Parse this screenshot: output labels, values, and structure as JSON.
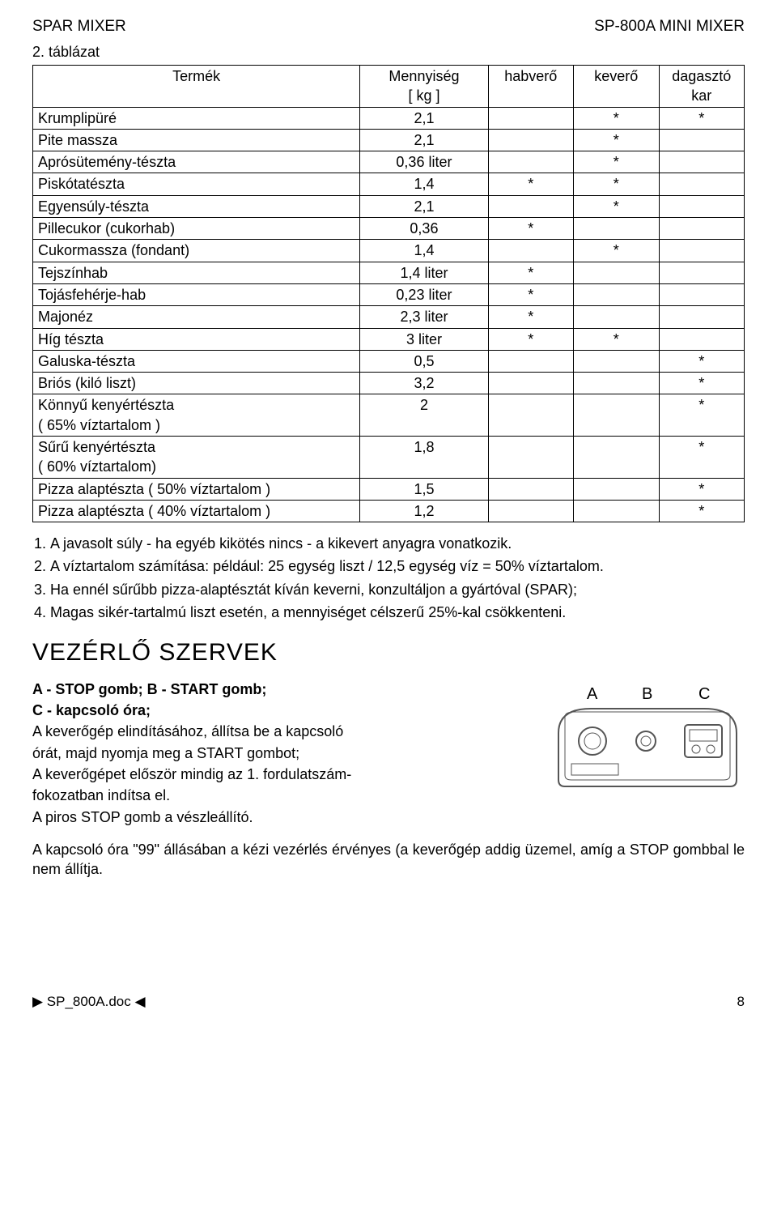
{
  "header": {
    "left": "SPAR MIXER",
    "right": "SP-800A MINI MIXER"
  },
  "table": {
    "caption": "2. táblázat",
    "head": {
      "name": "Termék",
      "qty_l1": "Mennyiség",
      "qty_l2": "[ kg ]",
      "c1": "habverő",
      "c2": "keverő",
      "c3_l1": "dagasztó",
      "c3_l2": "kar"
    },
    "rows": [
      {
        "name": "Krumplipüré",
        "qty": "2,1",
        "a": "",
        "b": "*",
        "c": "*"
      },
      {
        "name": "Pite massza",
        "qty": "2,1",
        "a": "",
        "b": "*",
        "c": ""
      },
      {
        "name": "Aprósütemény-tészta",
        "qty": "0,36 liter",
        "a": "",
        "b": "*",
        "c": ""
      },
      {
        "name": "Piskótatészta",
        "qty": "1,4",
        "a": "*",
        "b": "*",
        "c": ""
      },
      {
        "name": "Egyensúly-tészta",
        "qty": "2,1",
        "a": "",
        "b": "*",
        "c": ""
      },
      {
        "name": "Pillecukor (cukorhab)",
        "qty": "0,36",
        "a": "*",
        "b": "",
        "c": ""
      },
      {
        "name": "Cukormassza (fondant)",
        "qty": "1,4",
        "a": "",
        "b": "*",
        "c": ""
      },
      {
        "name": "Tejszínhab",
        "qty": "1,4 liter",
        "a": "*",
        "b": "",
        "c": ""
      },
      {
        "name": "Tojásfehérje-hab",
        "qty": "0,23 liter",
        "a": "*",
        "b": "",
        "c": ""
      },
      {
        "name": "Majonéz",
        "qty": "2,3 liter",
        "a": "*",
        "b": "",
        "c": ""
      },
      {
        "name": "Híg tészta",
        "qty": "3 liter",
        "a": "*",
        "b": "*",
        "c": ""
      },
      {
        "name": "Galuska-tészta",
        "qty": "0,5",
        "a": "",
        "b": "",
        "c": "*"
      },
      {
        "name": "Briós (kiló liszt)",
        "qty": "3,2",
        "a": "",
        "b": "",
        "c": "*"
      },
      {
        "name": "Könnyű kenyértészta\n( 65% víztartalom )",
        "qty": "2",
        "a": "",
        "b": "",
        "c": "*"
      },
      {
        "name": "Sűrű kenyértészta\n( 60% víztartalom)",
        "qty": "1,8",
        "a": "",
        "b": "",
        "c": "*"
      },
      {
        "name": "Pizza alaptészta ( 50% víztartalom )",
        "qty": "1,5",
        "a": "",
        "b": "",
        "c": "*"
      },
      {
        "name": "Pizza alaptészta ( 40% víztartalom )",
        "qty": "1,2",
        "a": "",
        "b": "",
        "c": "*"
      }
    ]
  },
  "notes": [
    "A javasolt súly - ha egyéb kikötés nincs - a kikevert anyagra vonatkozik.",
    "A víztartalom számítása: például: 25 egység liszt / 12,5 egység víz = 50% víztartalom.",
    "Ha ennél sűrűbb pizza-alaptésztát kíván keverni, konzultáljon a gyártóval (SPAR);",
    "Magas sikér-tartalmú liszt esetén, a mennyiséget célszerű 25%-kal csökkenteni."
  ],
  "section": {
    "title": "VEZÉRLŐ SZERVEK"
  },
  "controls": {
    "line1": "A - STOP gomb; B - START gomb;",
    "line2": "C - kapcsoló óra;",
    "line3": "A keverőgép elindításához, állítsa be a kapcsoló",
    "line4": "órát, majd nyomja meg a START gombot;",
    "line5": "A keverőgépet először mindig az 1. fordulatszám-",
    "line6": "fokozatban indítsa el.",
    "line7": "A piros STOP gomb a vészleállító."
  },
  "controls_after": "A kapcsoló óra \"99\" állásában a kézi vezérlés érvényes (a keverőgép addig üzemel, amíg a STOP gombbal le nem állítja.",
  "panel_labels": {
    "A": "A",
    "B": "B",
    "C": "C"
  },
  "footer": {
    "file": "SP_800A.doc",
    "page": "8"
  },
  "colors": {
    "text": "#000000",
    "border": "#000000",
    "bg": "#ffffff",
    "panel_stroke": "#555555"
  }
}
